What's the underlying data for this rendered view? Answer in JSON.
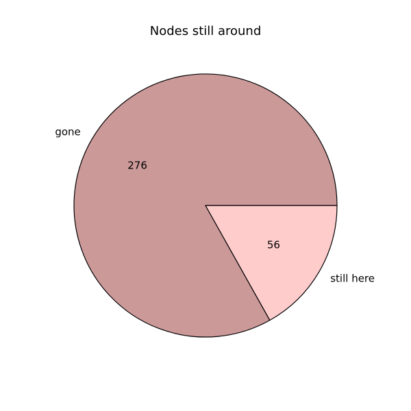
{
  "chart_data": {
    "type": "pie",
    "title": "Nodes still around",
    "categories": [
      "gone",
      "still here"
    ],
    "values": [
      276,
      56
    ],
    "value_labels": [
      "276",
      "56"
    ],
    "colors": [
      "#cc9999",
      "#ffcccc"
    ],
    "edge_color": "#000000",
    "start_angle_deg": 0,
    "direction": "counterclockwise"
  }
}
